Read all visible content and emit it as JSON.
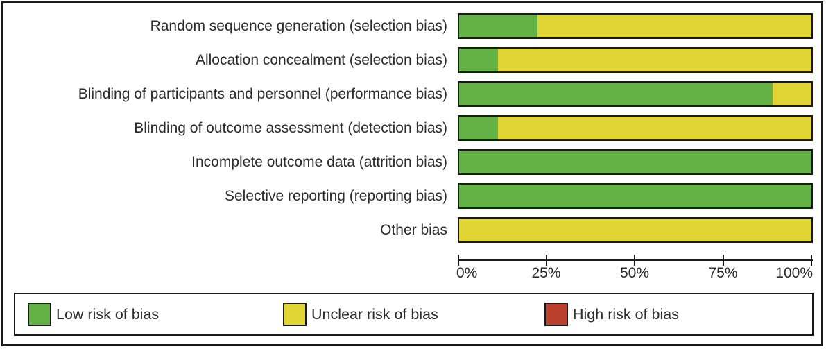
{
  "figure": {
    "description": "Risk of bias graph: review authors' judgements about each risk of bias item presented as percentages across all included studies"
  },
  "colors": {
    "low": "#64b245",
    "unclear": "#e0d532",
    "high": "#b8402c",
    "border": "#1a1a1a",
    "text": "#2b2b2b"
  },
  "chart_data": {
    "type": "bar",
    "orientation": "horizontal-stacked",
    "title": "",
    "xlabel": "",
    "ylabel": "",
    "xlim": [
      0,
      100
    ],
    "grid": false,
    "legend_position": "bottom",
    "categories": [
      "Random sequence generation (selection bias)",
      "Allocation concealment (selection bias)",
      "Blinding of participants and personnel (performance bias)",
      "Blinding of outcome assessment (detection bias)",
      "Incomplete outcome data (attrition bias)",
      "Selective reporting (reporting bias)",
      "Other bias"
    ],
    "series": [
      {
        "name": "Low risk of bias",
        "color": "#64b245",
        "values": [
          22.2,
          11.1,
          88.9,
          11.1,
          100,
          100,
          0
        ]
      },
      {
        "name": "Unclear risk of bias",
        "color": "#e0d532",
        "values": [
          77.8,
          88.9,
          11.1,
          88.9,
          0,
          0,
          100
        ]
      },
      {
        "name": "High risk of bias",
        "color": "#b8402c",
        "values": [
          0,
          0,
          0,
          0,
          0,
          0,
          0
        ]
      }
    ],
    "x_ticks": [
      {
        "label": "0%",
        "value": 0
      },
      {
        "label": "25%",
        "value": 25
      },
      {
        "label": "50%",
        "value": 50
      },
      {
        "label": "75%",
        "value": 75
      },
      {
        "label": "100%",
        "value": 100
      }
    ]
  },
  "legend": {
    "items": [
      {
        "label": "Low risk of bias",
        "color": "#64b245"
      },
      {
        "label": "Unclear risk of bias",
        "color": "#e0d532"
      },
      {
        "label": "High risk of bias",
        "color": "#b8402c"
      }
    ]
  }
}
